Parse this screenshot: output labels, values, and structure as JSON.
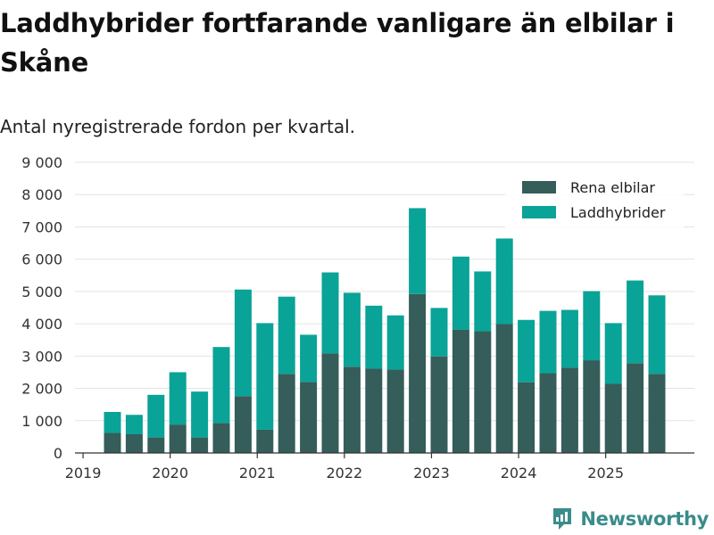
{
  "title": "Laddhybrider fortfarande vanligare än elbilar i Skåne",
  "subtitle": "Antal nyregistrerade fordon per kvartal.",
  "brand": {
    "name": "Newsworthy",
    "icon": "newsworthy-logo-icon"
  },
  "colors": {
    "rena_elbilar": "#355d5a",
    "laddhybrider": "#0aa397",
    "grid": "#e3e3e3",
    "axis": "#333333",
    "brand": "#3a8c8b"
  },
  "chart_data": {
    "type": "bar",
    "stacked": true,
    "title": "Laddhybrider fortfarande vanligare än elbilar i Skåne",
    "subtitle": "Antal nyregistrerade fordon per kvartal.",
    "xlabel": "",
    "ylabel": "",
    "ylim": [
      0,
      9000
    ],
    "yticks": [
      0,
      1000,
      2000,
      3000,
      4000,
      5000,
      6000,
      7000,
      8000,
      9000
    ],
    "ytick_labels": [
      "0",
      "1 000",
      "2 000",
      "3 000",
      "4 000",
      "5 000",
      "6 000",
      "7 000",
      "8 000",
      "9 000"
    ],
    "xticks": [
      {
        "label": "2019",
        "at": 0
      },
      {
        "label": "2020",
        "at": 4
      },
      {
        "label": "2021",
        "at": 8
      },
      {
        "label": "2022",
        "at": 12
      },
      {
        "label": "2023",
        "at": 16
      },
      {
        "label": "2024",
        "at": 20
      },
      {
        "label": "2025",
        "at": 24
      }
    ],
    "grid": true,
    "legend_position": "top-right",
    "categories": [
      "2019 Q2",
      "2019 Q3",
      "2019 Q4",
      "2020 Q1",
      "2020 Q2",
      "2020 Q3",
      "2020 Q4",
      "2021 Q1",
      "2021 Q2",
      "2021 Q3",
      "2021 Q4",
      "2022 Q1",
      "2022 Q2",
      "2022 Q3",
      "2022 Q4",
      "2023 Q1",
      "2023 Q2",
      "2023 Q3",
      "2023 Q4",
      "2024 Q1",
      "2024 Q2",
      "2024 Q3",
      "2024 Q4",
      "2025 Q1",
      "2025 Q2",
      "2025 Q3"
    ],
    "series": [
      {
        "name": "Rena elbilar",
        "color": "#355d5a",
        "values": [
          620,
          580,
          480,
          880,
          480,
          930,
          1760,
          720,
          2450,
          2200,
          3080,
          2670,
          2610,
          2580,
          4920,
          2990,
          3820,
          3770,
          3990,
          2190,
          2470,
          2640,
          2870,
          2140,
          2780,
          2450
        ]
      },
      {
        "name": "Laddhybrider",
        "color": "#0aa397",
        "values": [
          650,
          600,
          1320,
          1620,
          1420,
          2350,
          3300,
          3300,
          2390,
          1460,
          2510,
          2290,
          1950,
          1680,
          2660,
          1500,
          2260,
          1850,
          2650,
          1930,
          1930,
          1790,
          2140,
          1880,
          2560,
          2430
        ]
      }
    ]
  }
}
